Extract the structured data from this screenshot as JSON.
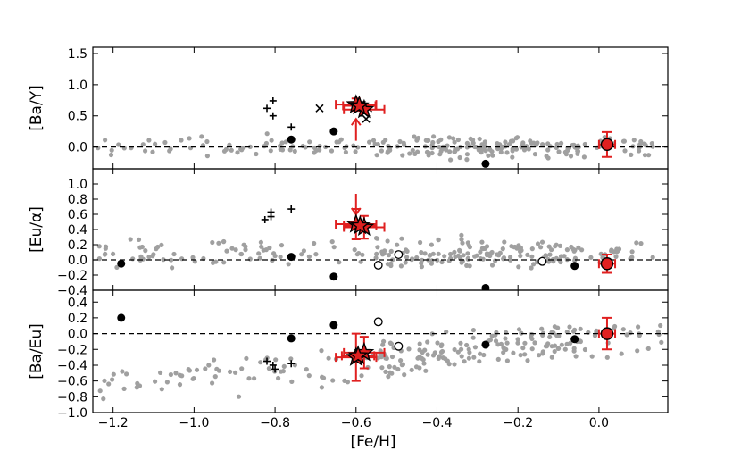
{
  "chart_data": {
    "type": "scatter",
    "xlabel": "[Fe/H]",
    "xlim": [
      -1.25,
      0.17
    ],
    "xticks": [
      "-1.2",
      "-1.0",
      "-0.8",
      "-0.6",
      "-0.4",
      "-0.2",
      "0.0"
    ],
    "xtick_values": [
      -1.2,
      -1.0,
      -0.8,
      -0.6,
      -0.4,
      -0.2,
      0.0
    ],
    "colors": {
      "field": "#a0a0a0",
      "highlight": "#e02020",
      "errorbar": "#e02020",
      "marker": "#000000",
      "reference_line": "#000000"
    },
    "panels": [
      {
        "ylabel": "[Ba/Y]",
        "ylim": [
          -0.35,
          1.6
        ],
        "yticks": [
          "0.0",
          "0.5",
          "1.0",
          "1.5"
        ],
        "ytick_values": [
          0.0,
          0.5,
          1.0,
          1.5
        ],
        "reference_line": 0.0,
        "field_seed": 11,
        "field_mean": 0.0,
        "field_spread": 0.1,
        "filled_circles": [
          [
            -0.76,
            0.12
          ],
          [
            -0.655,
            0.25
          ],
          [
            -0.28,
            -0.27
          ]
        ],
        "open_circles": [],
        "plus_markers": [
          [
            -0.82,
            0.62
          ],
          [
            -0.805,
            0.74
          ],
          [
            -0.805,
            0.5
          ],
          [
            -0.76,
            0.32
          ]
        ],
        "x_markers": [
          [
            -0.69,
            0.62
          ],
          [
            -0.58,
            0.55
          ],
          [
            -0.575,
            0.45
          ],
          [
            -0.57,
            0.62
          ]
        ],
        "stars": [
          {
            "x": -0.6,
            "y": 0.68,
            "xerr": 0.05,
            "yerr": 0.1
          },
          {
            "x": -0.58,
            "y": 0.6,
            "xerr": 0.05,
            "yerr": 0.06
          },
          {
            "x": -0.592,
            "y": 0.66,
            "xerr": 0.04,
            "yerr": 0.0
          }
        ],
        "star_arrows": [
          {
            "x": -0.6,
            "y_from": 0.1,
            "y_to": 0.45
          }
        ],
        "sun": {
          "x": 0.02,
          "y": 0.04,
          "xerr": 0.02,
          "yerr": 0.2
        }
      },
      {
        "ylabel": "[Eu/α]",
        "ylim": [
          -0.4,
          1.2
        ],
        "yticks": [
          "-0.4",
          "-0.2",
          "0.0",
          "0.2",
          "0.4",
          "0.6",
          "0.8",
          "1.0"
        ],
        "ytick_values": [
          -0.4,
          -0.2,
          0.0,
          0.2,
          0.4,
          0.6,
          0.8,
          1.0
        ],
        "reference_line": 0.0,
        "field_seed": 23,
        "field_mean": 0.08,
        "field_spread": 0.11,
        "filled_circles": [
          [
            -1.18,
            -0.05
          ],
          [
            -0.76,
            0.04
          ],
          [
            -0.655,
            -0.22
          ],
          [
            -0.28,
            -0.37
          ],
          [
            -0.06,
            -0.08
          ]
        ],
        "open_circles": [
          [
            -0.545,
            -0.07
          ],
          [
            -0.495,
            0.07
          ],
          [
            -0.14,
            -0.02
          ]
        ],
        "plus_markers": [
          [
            -0.825,
            0.53
          ],
          [
            -0.81,
            0.63
          ],
          [
            -0.81,
            0.57
          ],
          [
            -0.76,
            0.67
          ]
        ],
        "x_markers": [],
        "stars": [
          {
            "x": -0.6,
            "y": 0.47,
            "xerr": 0.05,
            "yerr": 0.2
          },
          {
            "x": -0.58,
            "y": 0.43,
            "xerr": 0.05,
            "yerr": 0.15
          },
          {
            "x": -0.59,
            "y": 0.45,
            "xerr": 0.04,
            "yerr": 0.0
          }
        ],
        "star_arrows": [
          {
            "x": -0.6,
            "y_from": 0.87,
            "y_to": 0.6
          }
        ],
        "sun": {
          "x": 0.02,
          "y": -0.05,
          "xerr": 0.02,
          "yerr": 0.12
        }
      },
      {
        "ylabel": "[Ba/Eu]",
        "ylim": [
          -1.0,
          0.55
        ],
        "yticks": [
          "-1.0",
          "-0.8",
          "-0.6",
          "-0.4",
          "-0.2",
          "0.0",
          "0.2",
          "0.4"
        ],
        "ytick_values": [
          -1.0,
          -0.8,
          -0.6,
          -0.4,
          -0.2,
          0.0,
          0.2,
          0.4
        ],
        "reference_line": 0.0,
        "field_seed": 37,
        "field_mean": -0.3,
        "field_spread": 0.15,
        "field_slope": 0.5,
        "filled_circles": [
          [
            -1.18,
            0.2
          ],
          [
            -0.76,
            -0.06
          ],
          [
            -0.655,
            0.11
          ],
          [
            -0.28,
            -0.14
          ],
          [
            -0.06,
            -0.07
          ]
        ],
        "open_circles": [
          [
            -0.545,
            0.15
          ],
          [
            -0.495,
            -0.16
          ]
        ],
        "plus_markers": [
          [
            -0.82,
            -0.35
          ],
          [
            -0.805,
            -0.4
          ],
          [
            -0.8,
            -0.45
          ],
          [
            -0.76,
            -0.38
          ]
        ],
        "x_markers": [],
        "stars": [
          {
            "x": -0.6,
            "y": -0.3,
            "xerr": 0.05,
            "yerr": 0.3
          },
          {
            "x": -0.58,
            "y": -0.24,
            "xerr": 0.05,
            "yerr": 0.2
          },
          {
            "x": -0.595,
            "y": -0.28,
            "xerr": 0.04,
            "yerr": 0.0
          }
        ],
        "star_arrows": [],
        "sun": {
          "x": 0.02,
          "y": 0.0,
          "xerr": 0.02,
          "yerr": 0.2
        }
      }
    ]
  }
}
